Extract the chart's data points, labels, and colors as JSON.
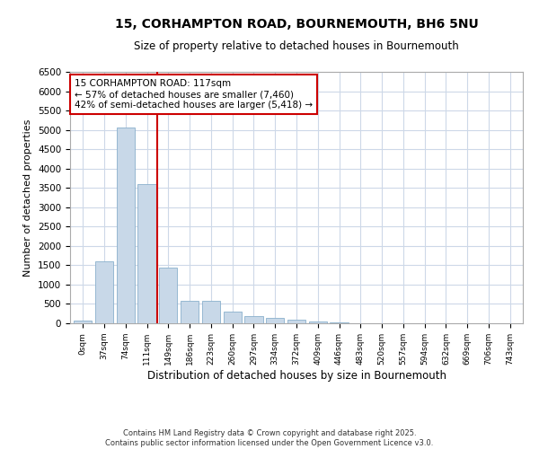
{
  "title_line1": "15, CORHAMPTON ROAD, BOURNEMOUTH, BH6 5NU",
  "title_line2": "Size of property relative to detached houses in Bournemouth",
  "xlabel": "Distribution of detached houses by size in Bournemouth",
  "ylabel": "Number of detached properties",
  "bar_color": "#c8d8e8",
  "bar_edge_color": "#8ab0cc",
  "vline_color": "#cc0000",
  "vline_x": 3.5,
  "annotation_text": "15 CORHAMPTON ROAD: 117sqm\n← 57% of detached houses are smaller (7,460)\n42% of semi-detached houses are larger (5,418) →",
  "annotation_box_color": "#ffffff",
  "annotation_border_color": "#cc0000",
  "categories": [
    "0sqm",
    "37sqm",
    "74sqm",
    "111sqm",
    "149sqm",
    "186sqm",
    "223sqm",
    "260sqm",
    "297sqm",
    "334sqm",
    "372sqm",
    "409sqm",
    "446sqm",
    "483sqm",
    "520sqm",
    "557sqm",
    "594sqm",
    "632sqm",
    "669sqm",
    "706sqm",
    "743sqm"
  ],
  "values": [
    60,
    1600,
    5050,
    3600,
    1450,
    570,
    570,
    310,
    175,
    130,
    90,
    50,
    15,
    5,
    5,
    0,
    0,
    0,
    0,
    0,
    0
  ],
  "ylim": [
    0,
    6500
  ],
  "yticks": [
    0,
    500,
    1000,
    1500,
    2000,
    2500,
    3000,
    3500,
    4000,
    4500,
    5000,
    5500,
    6000,
    6500
  ],
  "footer_line1": "Contains HM Land Registry data © Crown copyright and database right 2025.",
  "footer_line2": "Contains public sector information licensed under the Open Government Licence v3.0.",
  "background_color": "#ffffff",
  "grid_color": "#cdd8e8"
}
